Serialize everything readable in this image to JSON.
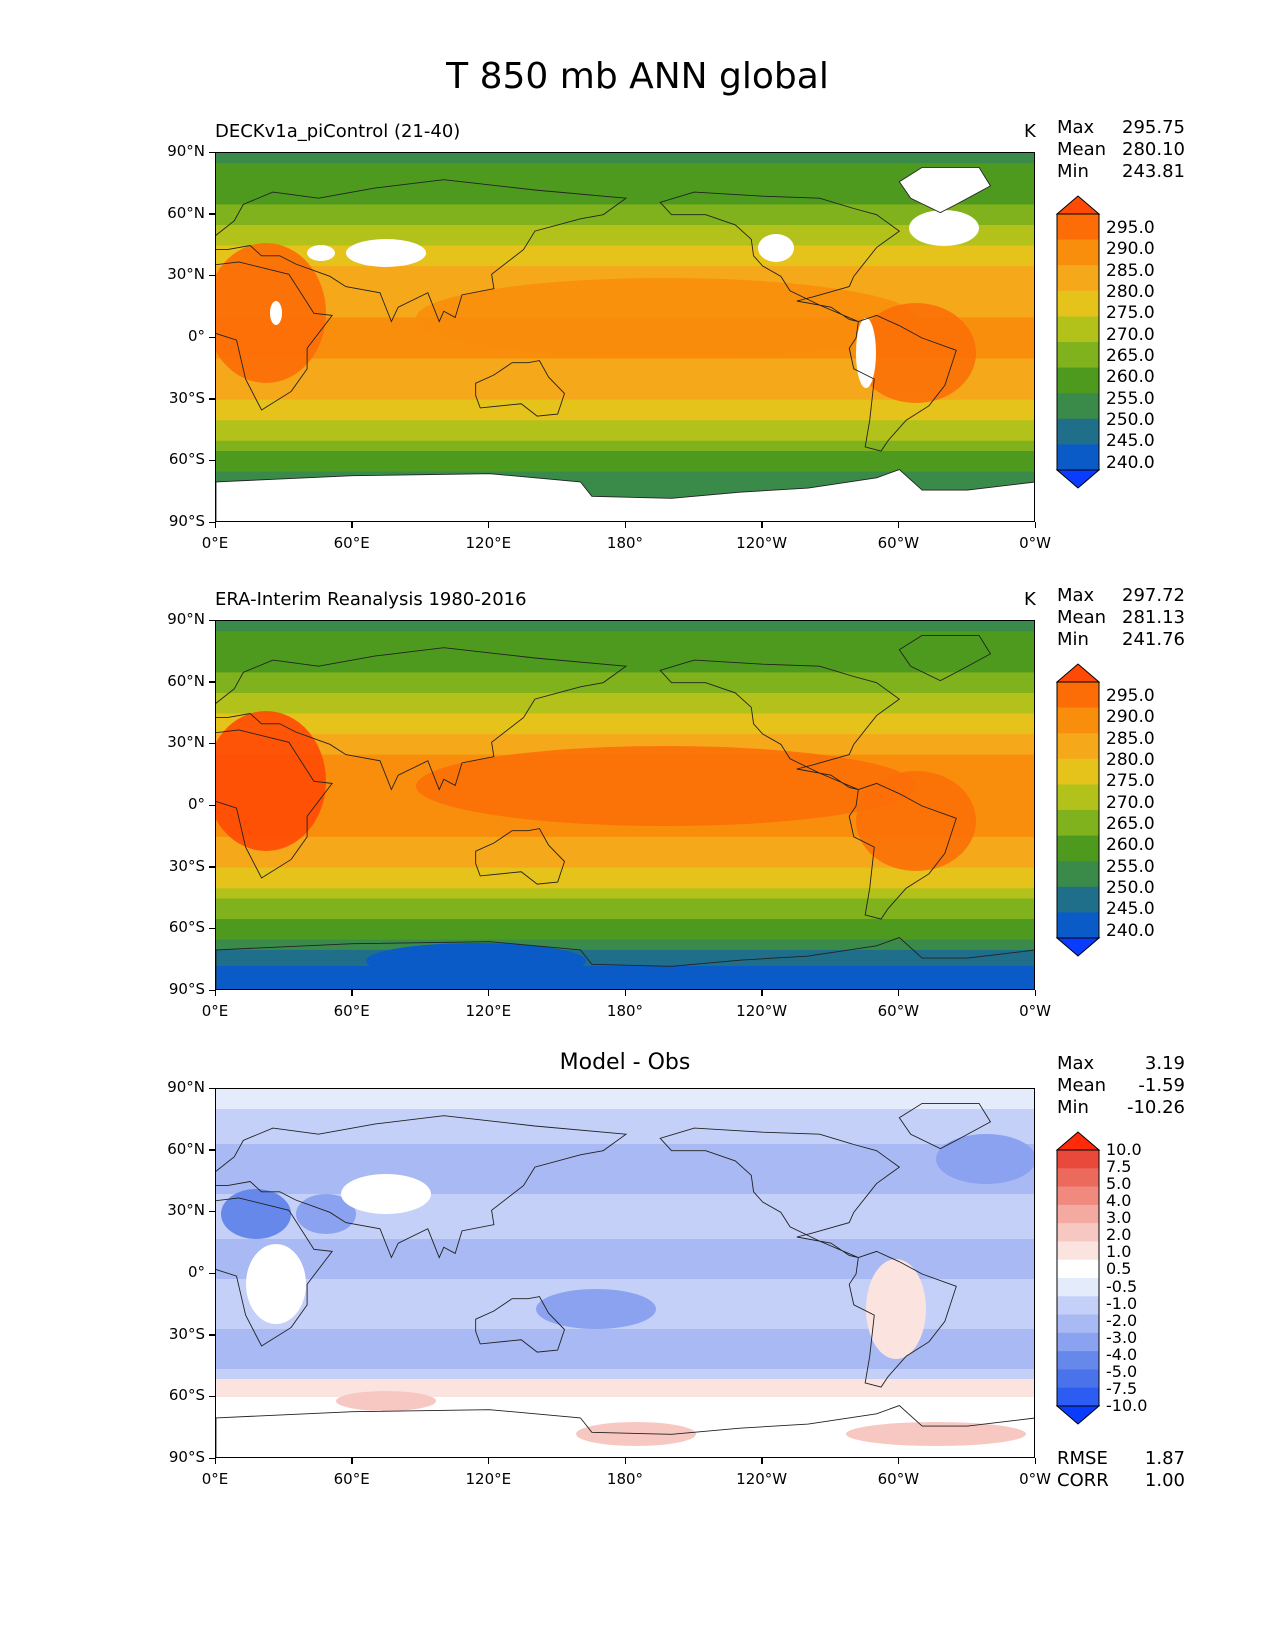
{
  "title": "T 850 mb ANN global",
  "xticks": [
    "0°E",
    "60°E",
    "120°E",
    "180°",
    "120°W",
    "60°W",
    "0°W"
  ],
  "yticks": [
    "90°N",
    "60°N",
    "30°N",
    "0°",
    "30°S",
    "60°S",
    "90°S"
  ],
  "panels": [
    {
      "title": "DECKv1a_piControl (21-40)",
      "units": "K",
      "stats": [
        {
          "label": "Max",
          "value": "295.75"
        },
        {
          "label": "Mean",
          "value": "280.10"
        },
        {
          "label": "Min",
          "value": "243.81"
        }
      ],
      "colorbar_labels": [
        "295.0",
        "290.0",
        "285.0",
        "280.0",
        "275.0",
        "270.0",
        "265.0",
        "260.0",
        "255.0",
        "250.0",
        "245.0",
        "240.0"
      ]
    },
    {
      "title": "ERA-Interim Reanalysis 1980-2016",
      "units": "K",
      "stats": [
        {
          "label": "Max",
          "value": "297.72"
        },
        {
          "label": "Mean",
          "value": "281.13"
        },
        {
          "label": "Min",
          "value": "241.76"
        }
      ],
      "colorbar_labels": [
        "295.0",
        "290.0",
        "285.0",
        "280.0",
        "275.0",
        "270.0",
        "265.0",
        "260.0",
        "255.0",
        "250.0",
        "245.0",
        "240.0"
      ]
    },
    {
      "title": "Model - Obs",
      "units": "",
      "stats": [
        {
          "label": "Max",
          "value": "3.19"
        },
        {
          "label": "Mean",
          "value": "-1.59"
        },
        {
          "label": "Min",
          "value": "-10.26"
        }
      ],
      "colorbar_labels": [
        "10.0",
        "7.5",
        "5.0",
        "4.0",
        "3.0",
        "2.0",
        "1.0",
        "0.5",
        "-0.5",
        "-1.0",
        "-2.0",
        "-3.0",
        "-4.0",
        "-5.0",
        "-7.5",
        "-10.0"
      ],
      "footer_stats": [
        {
          "label": "RMSE",
          "value": "1.87"
        },
        {
          "label": "CORR",
          "value": "1.00"
        }
      ]
    }
  ],
  "chart_data": [
    {
      "type": "heatmap",
      "title": "DECKv1a_piControl (21-40)",
      "variable": "T 850 mb ANN global",
      "units": "K",
      "x_range": [
        "0°E",
        "0°W"
      ],
      "y_range": [
        "90°S",
        "90°N"
      ],
      "contour_levels": [
        240,
        245,
        250,
        255,
        260,
        265,
        270,
        275,
        280,
        285,
        290,
        295
      ],
      "colors": [
        "#0a3cff",
        "#0a5ac8",
        "#1f6f8b",
        "#3a8a4a",
        "#4e9a1e",
        "#7fb21c",
        "#b3c21a",
        "#e6c31a",
        "#f5a81a",
        "#f98d0c",
        "#fc6d07",
        "#ff4a06"
      ],
      "approx_zonal_mean_K": [
        {
          "lat": 90,
          "value": 258
        },
        {
          "lat": 60,
          "value": 266
        },
        {
          "lat": 30,
          "value": 282
        },
        {
          "lat": 0,
          "value": 287
        },
        {
          "lat": -30,
          "value": 280
        },
        {
          "lat": -60,
          "value": 263
        },
        {
          "lat": -90,
          "value": 250
        }
      ],
      "stats": {
        "max": 295.75,
        "mean": 280.1,
        "min": 243.81
      }
    },
    {
      "type": "heatmap",
      "title": "ERA-Interim Reanalysis 1980-2016",
      "variable": "T 850 mb ANN global",
      "units": "K",
      "x_range": [
        "0°E",
        "0°W"
      ],
      "y_range": [
        "90°S",
        "90°N"
      ],
      "contour_levels": [
        240,
        245,
        250,
        255,
        260,
        265,
        270,
        275,
        280,
        285,
        290,
        295
      ],
      "colors": [
        "#0a3cff",
        "#0a5ac8",
        "#1f6f8b",
        "#3a8a4a",
        "#4e9a1e",
        "#7fb21c",
        "#b3c21a",
        "#e6c31a",
        "#f5a81a",
        "#f98d0c",
        "#fc6d07",
        "#ff4a06"
      ],
      "approx_zonal_mean_K": [
        {
          "lat": 90,
          "value": 258
        },
        {
          "lat": 60,
          "value": 267
        },
        {
          "lat": 30,
          "value": 284
        },
        {
          "lat": 0,
          "value": 290
        },
        {
          "lat": -30,
          "value": 281
        },
        {
          "lat": -60,
          "value": 262
        },
        {
          "lat": -90,
          "value": 245
        }
      ],
      "stats": {
        "max": 297.72,
        "mean": 281.13,
        "min": 241.76
      }
    },
    {
      "type": "heatmap",
      "title": "Model - Obs",
      "variable": "T 850 mb ANN global",
      "x_range": [
        "0°E",
        "0°W"
      ],
      "y_range": [
        "90°S",
        "90°N"
      ],
      "contour_levels": [
        -10.0,
        -7.5,
        -5.0,
        -4.0,
        -3.0,
        -2.0,
        -1.0,
        -0.5,
        0.5,
        1.0,
        2.0,
        3.0,
        4.0,
        5.0,
        7.5,
        10.0
      ],
      "colors": [
        "#0a3cff",
        "#2c5cf2",
        "#4a72ea",
        "#6688ea",
        "#8aa2ef",
        "#a8b9f3",
        "#c4d0f8",
        "#e4ebfb",
        "#ffffff",
        "#fbe3df",
        "#f7c8c2",
        "#f4aaa1",
        "#f08a7f",
        "#ec6a5c",
        "#e8493a",
        "#ff2a0a"
      ],
      "approx_zonal_mean": [
        {
          "lat": 90,
          "value": -1.0
        },
        {
          "lat": 60,
          "value": -2.0
        },
        {
          "lat": 30,
          "value": -2.5
        },
        {
          "lat": 0,
          "value": -2.0
        },
        {
          "lat": -30,
          "value": -2.0
        },
        {
          "lat": -60,
          "value": 0.5
        },
        {
          "lat": -90,
          "value": 0.0
        }
      ],
      "stats": {
        "max": 3.19,
        "mean": -1.59,
        "min": -10.26,
        "rmse": 1.87,
        "corr": 1.0
      }
    }
  ]
}
